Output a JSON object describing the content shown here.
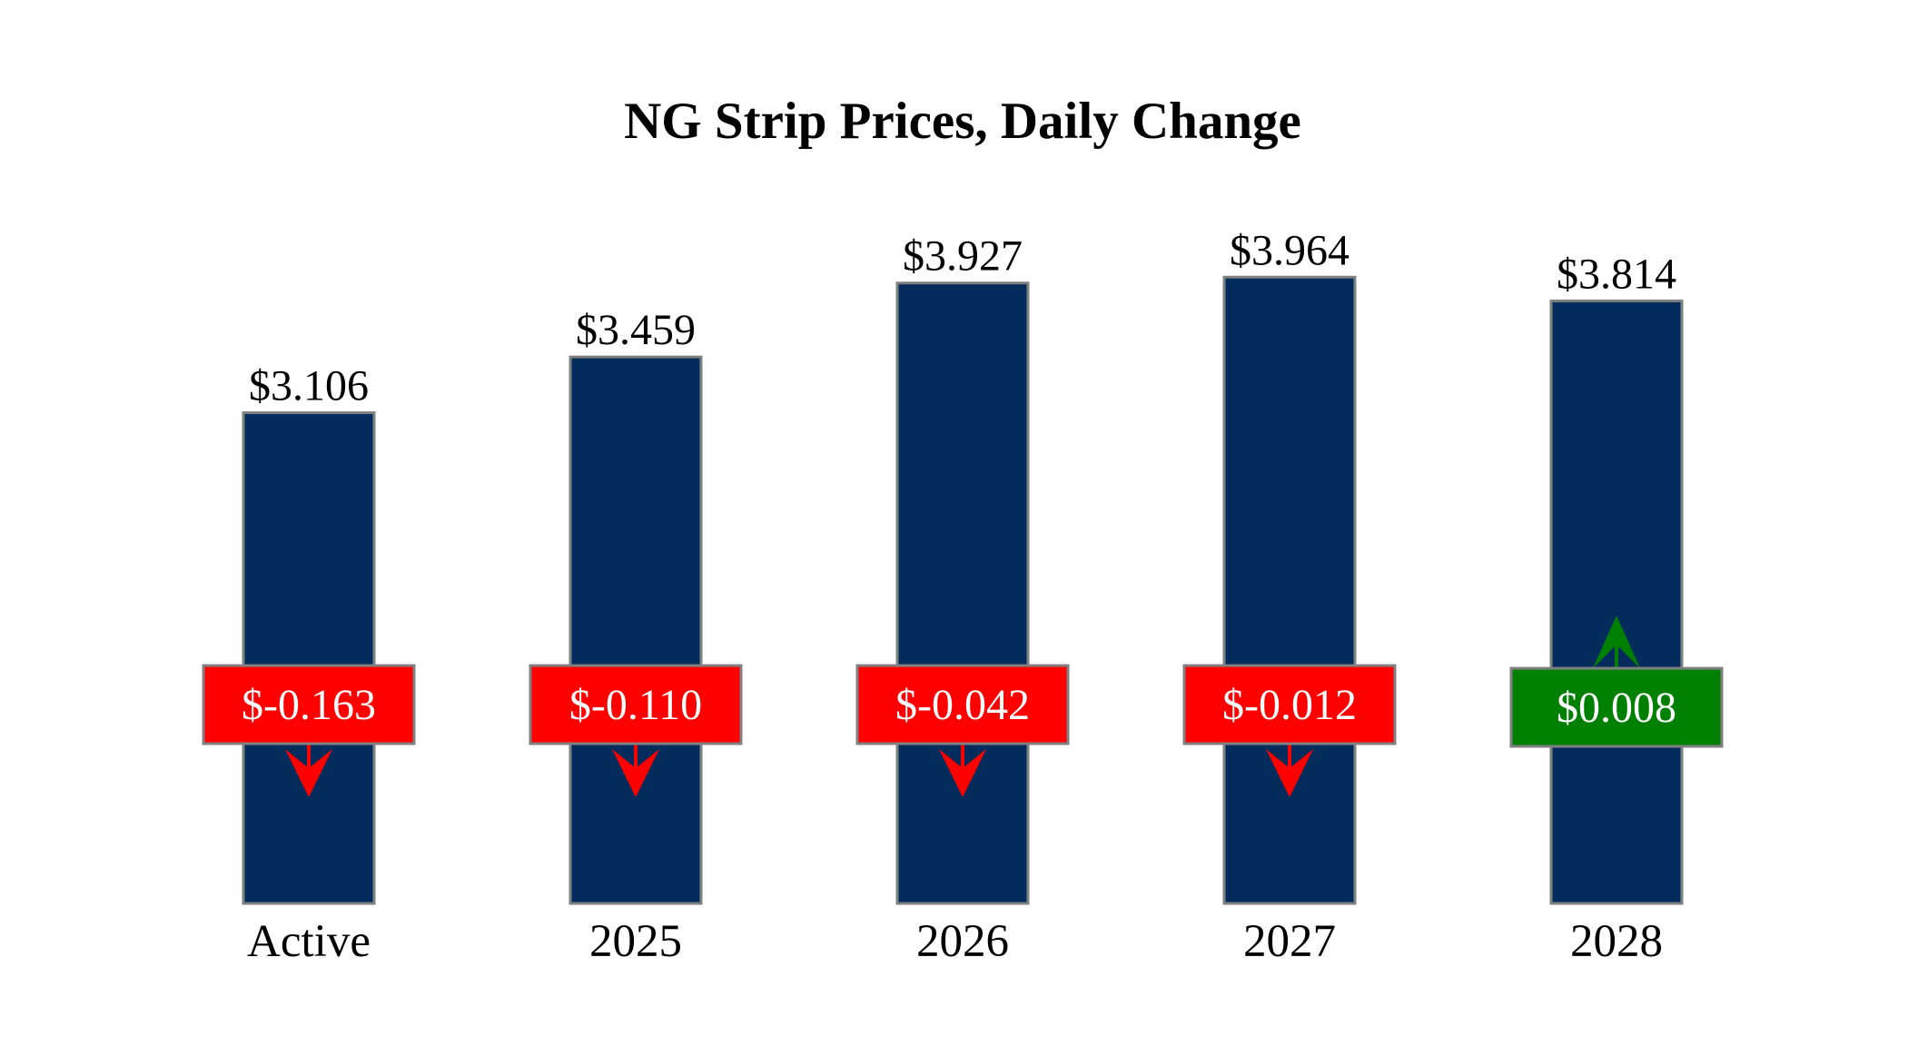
{
  "chart_data": {
    "type": "bar",
    "title": "NG Strip Prices, Daily Change",
    "categories": [
      "Active",
      "2025",
      "2026",
      "2027",
      "2028"
    ],
    "values": [
      3.106,
      3.459,
      3.927,
      3.964,
      3.814
    ],
    "value_labels": [
      "$3.106",
      "$3.459",
      "$3.927",
      "$3.964",
      "$3.814"
    ],
    "changes": [
      -0.163,
      -0.11,
      -0.042,
      -0.012,
      0.008
    ],
    "change_labels": [
      "$-0.163",
      "$-0.110",
      "$-0.042",
      "$-0.012",
      "$0.008"
    ],
    "xlabel": "",
    "ylabel": "",
    "ylim": [
      0,
      4.5
    ],
    "grid": false,
    "colors": {
      "bar": "#032B5B",
      "bar_edge": "#808080",
      "down": "#FF0000",
      "up": "#008000"
    }
  }
}
